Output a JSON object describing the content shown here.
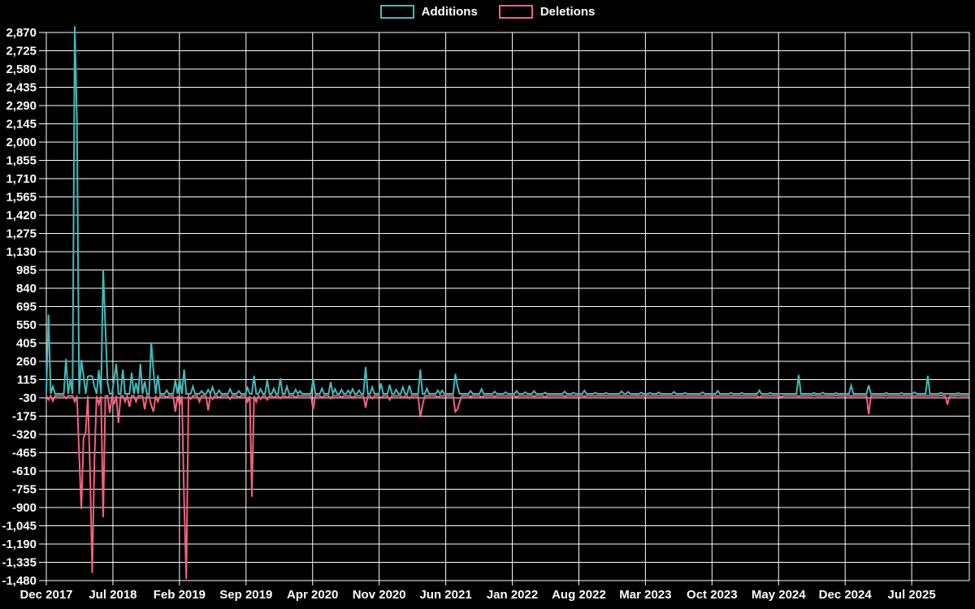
{
  "app": {
    "background_color": "#000000",
    "grid_color": "#ffffff",
    "text_color": "#ffffff"
  },
  "legend": {
    "items": [
      {
        "label": "Additions",
        "color": "#45b8ba"
      },
      {
        "label": "Deletions",
        "color": "#f2627e"
      }
    ]
  },
  "chart_data": {
    "type": "line",
    "title": "",
    "description": "Weekly code additions and deletions over time",
    "grid": true,
    "legend_position": "top-center",
    "x_axis": {
      "tick_labels": [
        "Dec 2017",
        "Jul 2018",
        "Feb 2019",
        "Sep 2019",
        "Apr 2020",
        "Nov 2020",
        "Jun 2021",
        "Jan 2022",
        "Aug 2022",
        "Mar 2023",
        "Oct 2023",
        "May 2024",
        "Dec 2024",
        "Jul 2025"
      ],
      "tick_week_interval": 30.436
    },
    "y_axis": {
      "min": -1480,
      "max": 2870,
      "tick_step": 145
    },
    "weeks_total": 423,
    "series": [
      {
        "name": "Additions",
        "color": "#45b8ba",
        "baseline": 2,
        "points": {
          "0": 20,
          "1": 630,
          "3": 60,
          "9": 280,
          "11": 120,
          "13": 2920,
          "14": 2170,
          "16": 270,
          "17": 150,
          "19": 140,
          "20": 145,
          "21": 140,
          "22": 60,
          "24": 190,
          "26": 985,
          "27": 530,
          "28": 90,
          "31": 120,
          "32": 240,
          "35": 195,
          "39": 170,
          "41": 90,
          "43": 240,
          "45": 100,
          "48": 410,
          "49": 180,
          "51": 150,
          "55": 30,
          "59": 110,
          "61": 120,
          "63": 195,
          "67": 60,
          "71": 25,
          "74": 35,
          "76": 55,
          "79": 30,
          "84": 40,
          "88": 25,
          "92": 50,
          "95": 145,
          "98": 40,
          "101": 110,
          "104": 45,
          "107": 125,
          "110": 60,
          "114": 35,
          "116": 25,
          "122": 120,
          "126": 45,
          "130": 95,
          "132": 40,
          "135": 35,
          "138": 30,
          "140": 40,
          "143": 30,
          "146": 215,
          "149": 55,
          "153": 85,
          "157": 75,
          "160": 35,
          "163": 55,
          "166": 70,
          "171": 195,
          "174": 45,
          "179": 30,
          "181": 30,
          "187": 160,
          "188": 60,
          "194": 25,
          "199": 40,
          "205": 20,
          "210": 15,
          "215": 25,
          "219": 15,
          "223": 25,
          "228": 12,
          "237": 20,
          "241": 12,
          "246": 28,
          "251": 12,
          "256": 10,
          "263": 22,
          "266": 18,
          "272": 12,
          "276": 10,
          "280": 14,
          "287": 18,
          "292": 10,
          "300": 15,
          "307": 26,
          "313": 10,
          "318": 10,
          "326": 30,
          "331": 10,
          "344": 152,
          "351": 10,
          "355": 12,
          "361": 8,
          "368": 68,
          "376": 70,
          "384": 10,
          "391": 8,
          "397": 15,
          "403": 145,
          "409": 12,
          "417": 8
        }
      },
      {
        "name": "Deletions",
        "color": "#f2627e",
        "baseline": -14,
        "points": {
          "1": -45,
          "3": -55,
          "9": -35,
          "13": -60,
          "15": -480,
          "16": -911,
          "17": -350,
          "18": -300,
          "20": -600,
          "21": -1420,
          "22": -530,
          "24": -80,
          "26": -976,
          "29": -150,
          "31": -80,
          "33": -230,
          "36": -60,
          "38": -100,
          "41": -60,
          "45": -120,
          "48": -90,
          "49": -140,
          "51": -60,
          "55": -25,
          "59": -140,
          "61": -90,
          "63": -846,
          "64": -1467,
          "66": -40,
          "70": -60,
          "74": -130,
          "76": -40,
          "79": -30,
          "84": -40,
          "88": -25,
          "92": -60,
          "94": -814,
          "96": -60,
          "98": -40,
          "101": -45,
          "104": -30,
          "107": -35,
          "110": -30,
          "114": -25,
          "122": -120,
          "126": -30,
          "130": -35,
          "135": -25,
          "140": -30,
          "146": -107,
          "149": -35,
          "153": -30,
          "157": -45,
          "163": -30,
          "166": -35,
          "171": -184,
          "172": -90,
          "179": -25,
          "187": -140,
          "188": -120,
          "189": -60,
          "194": -20,
          "199": -25,
          "205": -18,
          "215": -22,
          "223": -18,
          "228": -25,
          "237": -18,
          "246": -18,
          "256": -12,
          "263": -16,
          "272": -12,
          "280": -12,
          "287": -14,
          "292": -14,
          "300": -14,
          "307": -16,
          "318": -12,
          "326": -30,
          "331": -12,
          "336": -22,
          "344": -18,
          "351": -10,
          "361": -10,
          "368": -16,
          "376": -160,
          "384": -10,
          "397": -16,
          "403": -12,
          "409": -10,
          "412": -83,
          "417": -10
        }
      }
    ]
  }
}
